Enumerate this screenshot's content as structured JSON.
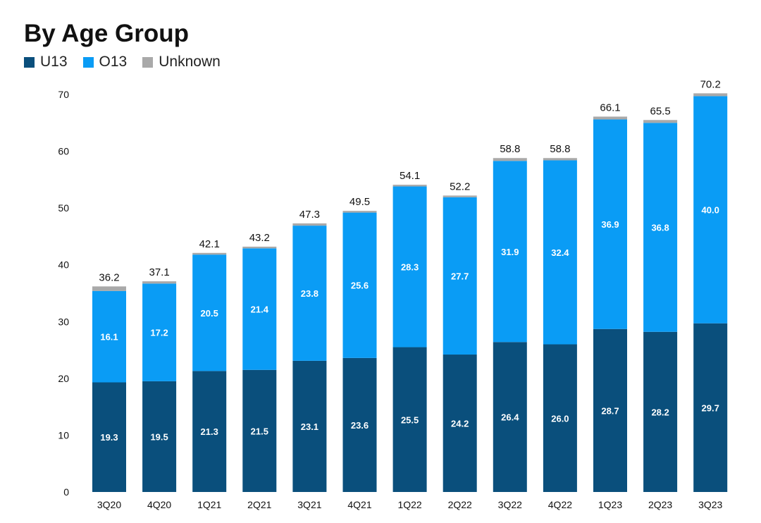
{
  "chart_data": {
    "type": "bar",
    "stacked": true,
    "title": "By Age Group",
    "categories": [
      "3Q20",
      "4Q20",
      "1Q21",
      "2Q21",
      "3Q21",
      "4Q21",
      "1Q22",
      "2Q22",
      "3Q22",
      "4Q22",
      "1Q23",
      "2Q23",
      "3Q23"
    ],
    "series": [
      {
        "name": "U13",
        "color": "#0a4f7c",
        "values": [
          19.3,
          19.5,
          21.3,
          21.5,
          23.1,
          23.6,
          25.5,
          24.2,
          26.4,
          26.0,
          28.7,
          28.2,
          29.7
        ]
      },
      {
        "name": "O13",
        "color": "#0a9cf5",
        "values": [
          16.1,
          17.2,
          20.5,
          21.4,
          23.8,
          25.6,
          28.3,
          27.7,
          31.9,
          32.4,
          36.9,
          36.8,
          40.0
        ]
      },
      {
        "name": "Unknown",
        "color": "#a9a9a9",
        "values": [
          0.8,
          0.4,
          0.3,
          0.3,
          0.4,
          0.3,
          0.3,
          0.3,
          0.5,
          0.4,
          0.5,
          0.5,
          0.5
        ]
      }
    ],
    "totals": [
      "36.2",
      "37.1",
      "42.1",
      "43.2",
      "47.3",
      "49.5",
      "54.1",
      "52.2",
      "58.8",
      "58.8",
      "66.1",
      "65.5",
      "70.2"
    ],
    "ylim": [
      0,
      70
    ],
    "yticks": [
      0,
      10,
      20,
      30,
      40,
      50,
      60,
      70
    ],
    "grid": false,
    "legend": "top-left"
  }
}
